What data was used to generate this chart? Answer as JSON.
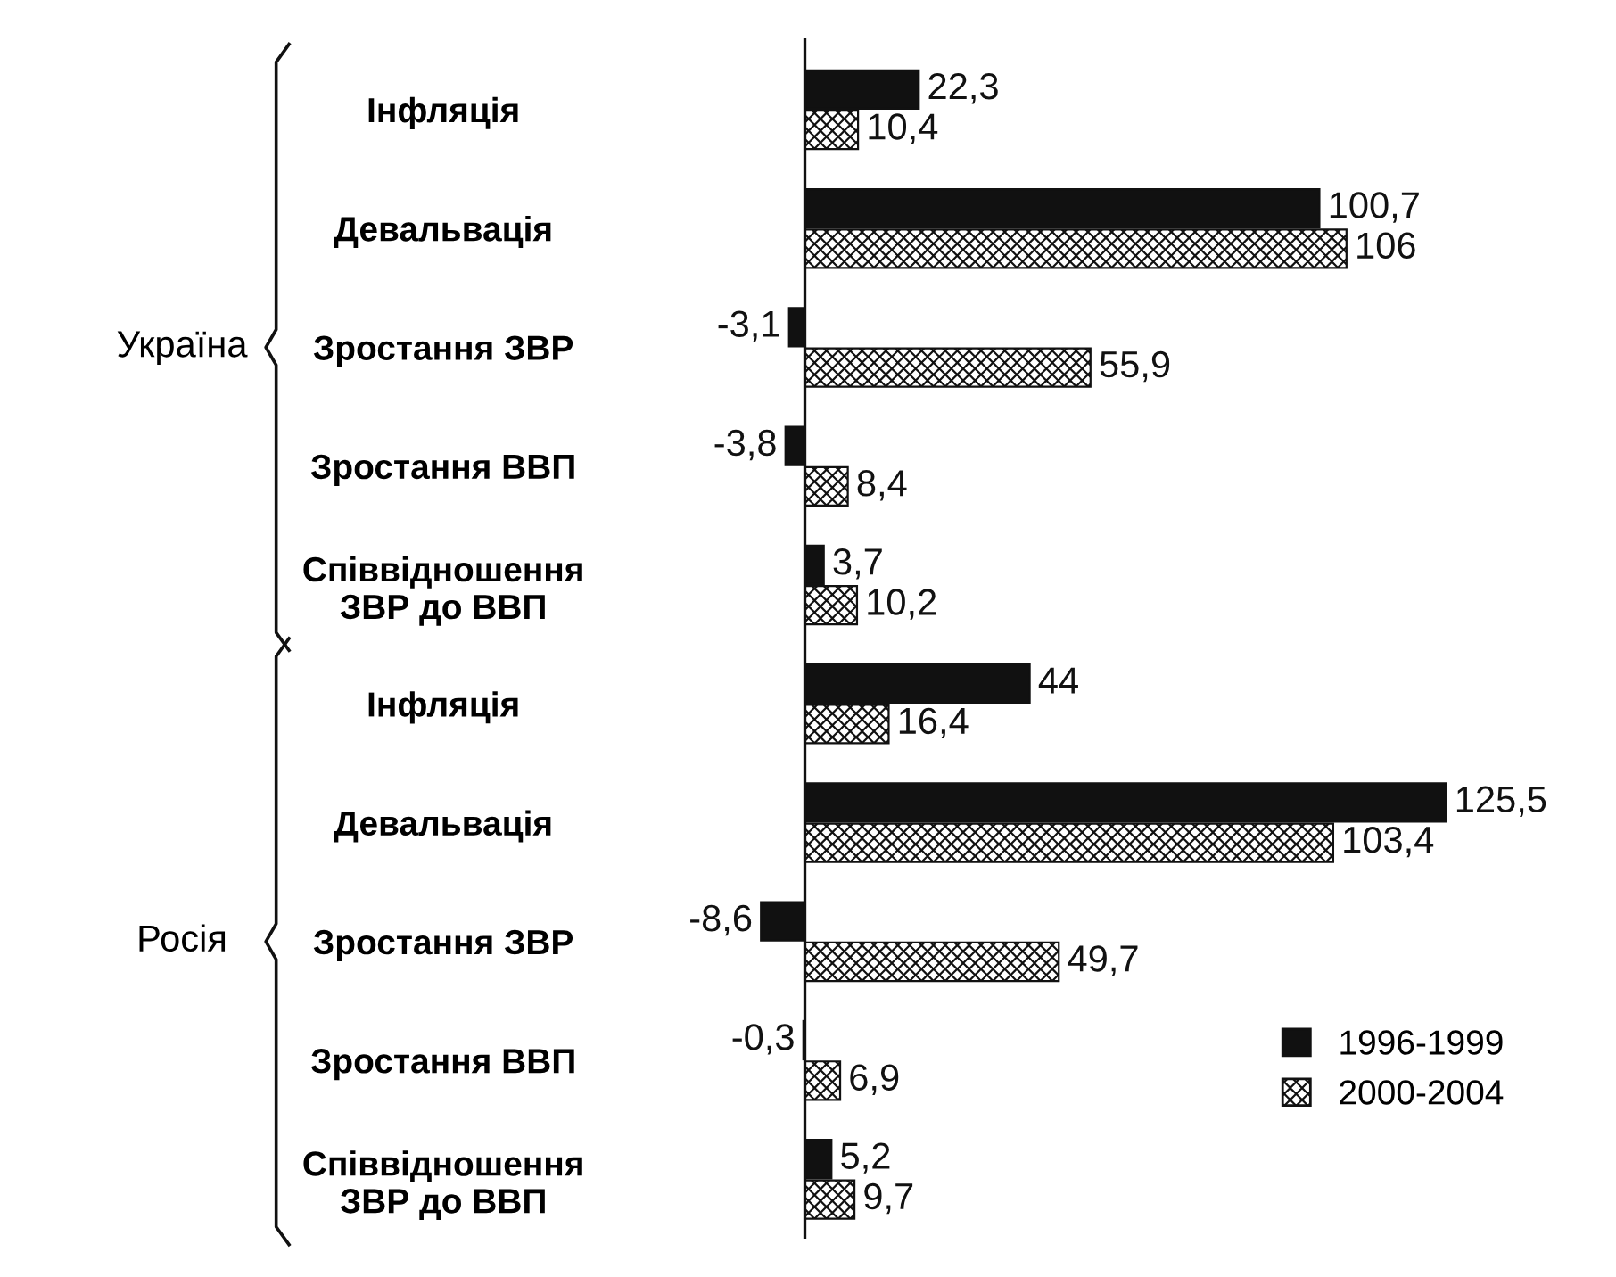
{
  "chart_data": {
    "type": "bar",
    "orientation": "horizontal",
    "data_labels": true,
    "legend": "bottom right",
    "grid": false,
    "tick_labels": "y",
    "categories": [
      "Інфляція",
      "Девальвація",
      "Зростання ЗВР",
      "Зростання ВВП",
      "Співвідношення\nЗВР до ВВП",
      "Інфляція",
      "Девальвація",
      "Зростання ЗВР",
      "Зростання ВВП",
      "Співвідношення\nЗВР до ВВП"
    ],
    "series": [
      {
        "name": "1996-1999",
        "color": "#111111",
        "values": [
          22.3,
          100.7,
          -3.1,
          -3.8,
          3.7,
          44,
          125.5,
          -8.6,
          -0.3,
          5.2
        ],
        "value_labels": [
          "22,3",
          "100,7",
          "-3,1",
          "-3,8",
          "3,7",
          "44",
          "125,5",
          "-8,6",
          "-0,3",
          "5,2"
        ]
      },
      {
        "name": "2000-2004",
        "color": "#111111",
        "values": [
          10.4,
          106,
          55.9,
          8.4,
          10.2,
          16.4,
          103.4,
          49.7,
          6.9,
          9.7
        ],
        "value_labels": [
          "10,4",
          "106",
          "55,9",
          "8,4",
          "10,2",
          "16,4",
          "103,4",
          "49,7",
          "6,9",
          "9,7"
        ]
      }
    ],
    "annotations": [
      "Україна",
      "Росія"
    ]
  }
}
